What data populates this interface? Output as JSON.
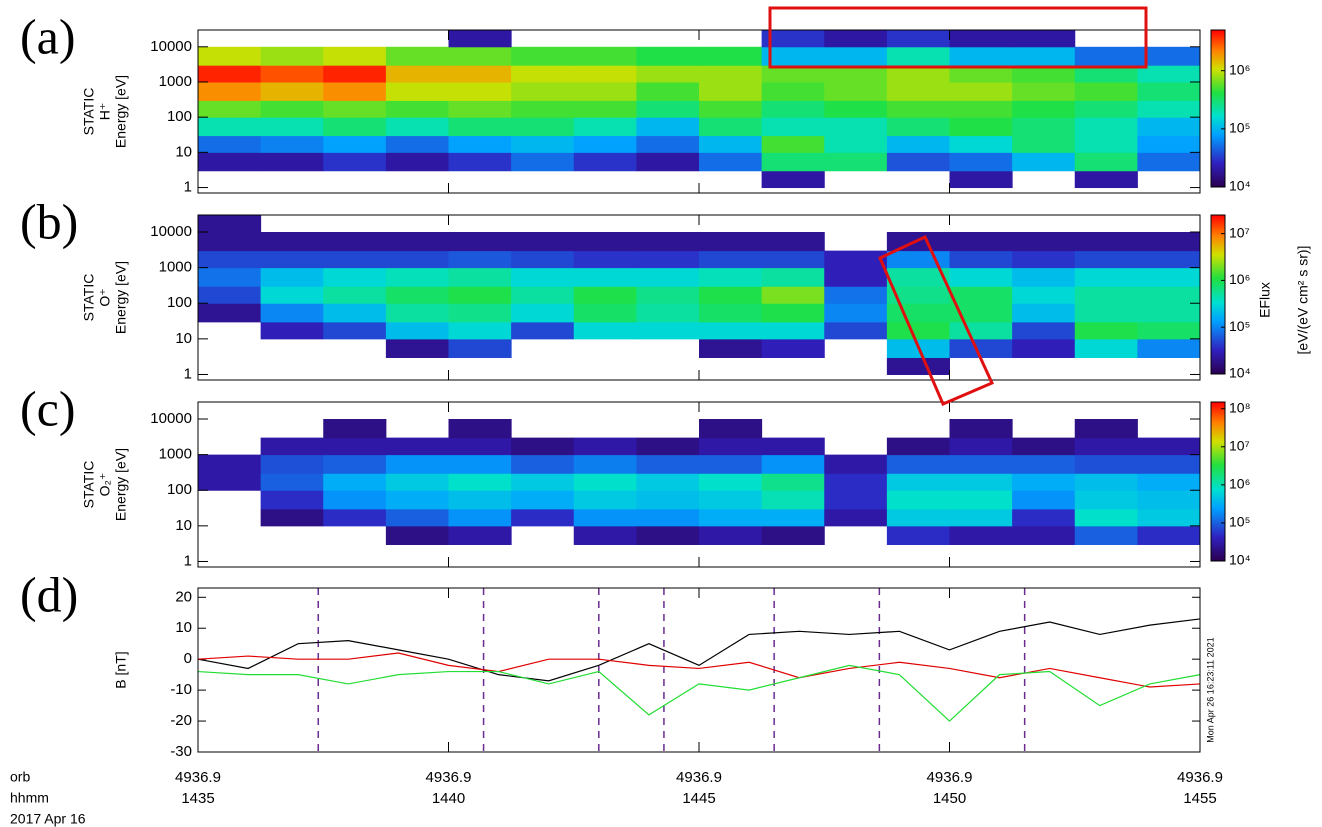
{
  "chart_data": [
    {
      "type": "heatmap",
      "label": "(a)",
      "ylabel": [
        "STATIC",
        "H⁺",
        "Energy [eV]"
      ],
      "log_y": true,
      "xlim": [
        1435,
        1455
      ],
      "ylim": [
        0.7,
        30000
      ],
      "yticks": [
        1,
        10,
        100,
        1000,
        10000
      ],
      "x_edges": [
        1435,
        1436.25,
        1437.5,
        1438.75,
        1440,
        1441.25,
        1442.5,
        1443.75,
        1445,
        1446.25,
        1447.5,
        1448.75,
        1450,
        1451.25,
        1452.5,
        1453.75,
        1455
      ],
      "y_edges": [
        1,
        3,
        10,
        30,
        100,
        300,
        1000,
        3000,
        10000,
        30000
      ],
      "zlim": [
        10000,
        5000000
      ],
      "zticks": [
        {
          "value": 10000,
          "label": "10⁴"
        },
        {
          "value": 100000,
          "label": "10⁵"
        },
        {
          "value": 1000000,
          "label": "10⁶"
        }
      ],
      "z": [
        [
          null,
          null,
          null,
          null,
          null,
          null,
          null,
          null,
          null,
          20000.0,
          null,
          null,
          20000.0,
          null,
          20000.0,
          null
        ],
        [
          20000.0,
          20000.0,
          30000.0,
          20000.0,
          30000.0,
          50000.0,
          30000.0,
          20000.0,
          50000.0,
          300000.0,
          300000.0,
          40000.0,
          50000.0,
          100000.0,
          300000.0,
          50000.0
        ],
        [
          50000.0,
          60000.0,
          80000.0,
          50000.0,
          80000.0,
          100000.0,
          80000.0,
          50000.0,
          100000.0,
          500000.0,
          200000.0,
          100000.0,
          150000.0,
          300000.0,
          200000.0,
          80000.0
        ],
        [
          200000.0,
          200000.0,
          300000.0,
          200000.0,
          300000.0,
          300000.0,
          200000.0,
          100000.0,
          300000.0,
          200000.0,
          200000.0,
          300000.0,
          400000.0,
          300000.0,
          200000.0,
          100000.0
        ],
        [
          600000.0,
          500000.0,
          600000.0,
          500000.0,
          600000.0,
          500000.0,
          500000.0,
          300000.0,
          500000.0,
          300000.0,
          400000.0,
          500000.0,
          500000.0,
          400000.0,
          300000.0,
          200000.0
        ],
        [
          2000000.0,
          1500000.0,
          2000000.0,
          1000000.0,
          1000000.0,
          800000.0,
          800000.0,
          500000.0,
          800000.0,
          500000.0,
          600000.0,
          800000.0,
          800000.0,
          600000.0,
          500000.0,
          300000.0
        ],
        [
          4000000.0,
          3000000.0,
          4000000.0,
          1500000.0,
          1500000.0,
          1000000.0,
          1000000.0,
          800000.0,
          800000.0,
          600000.0,
          600000.0,
          800000.0,
          600000.0,
          500000.0,
          300000.0,
          200000.0
        ],
        [
          1000000.0,
          800000.0,
          1000000.0,
          600000.0,
          600000.0,
          500000.0,
          500000.0,
          400000.0,
          400000.0,
          100000.0,
          100000.0,
          200000.0,
          100000.0,
          100000.0,
          50000.0,
          50000.0
        ],
        [
          null,
          null,
          null,
          null,
          20000.0,
          null,
          null,
          null,
          null,
          30000.0,
          20000.0,
          30000.0,
          20000.0,
          20000.0,
          null,
          null
        ]
      ]
    },
    {
      "type": "heatmap",
      "label": "(b)",
      "ylabel": [
        "STATIC",
        "O⁺",
        "Energy [eV]"
      ],
      "log_y": true,
      "colorbar_label": [
        "EFlux",
        "[eV/(eV cm² s sr)]"
      ],
      "xlim": [
        1435,
        1455
      ],
      "ylim": [
        0.7,
        30000
      ],
      "yticks": [
        1,
        10,
        100,
        1000,
        10000
      ],
      "x_edges": [
        1435,
        1436.25,
        1437.5,
        1438.75,
        1440,
        1441.25,
        1442.5,
        1443.75,
        1445,
        1446.25,
        1447.5,
        1448.75,
        1450,
        1451.25,
        1452.5,
        1453.75,
        1455
      ],
      "y_edges": [
        1,
        3,
        10,
        30,
        100,
        300,
        1000,
        3000,
        10000,
        30000
      ],
      "zlim": [
        10000,
        25000000
      ],
      "zticks": [
        {
          "value": 10000,
          "label": "10⁴"
        },
        {
          "value": 100000,
          "label": "10⁵"
        },
        {
          "value": 1000000,
          "label": "10⁶"
        },
        {
          "value": 10000000,
          "label": "10⁷"
        }
      ],
      "z": [
        [
          null,
          null,
          null,
          null,
          null,
          null,
          null,
          null,
          null,
          null,
          null,
          20000.0,
          null,
          null,
          null,
          null
        ],
        [
          null,
          null,
          null,
          20000.0,
          50000.0,
          null,
          null,
          null,
          20000.0,
          30000.0,
          null,
          200000.0,
          50000.0,
          30000.0,
          300000.0,
          100000.0
        ],
        [
          null,
          30000.0,
          50000.0,
          200000.0,
          300000.0,
          50000.0,
          300000.0,
          300000.0,
          300000.0,
          300000.0,
          50000.0,
          1000000.0,
          500000.0,
          50000.0,
          1000000.0,
          800000.0
        ],
        [
          20000.0,
          100000.0,
          200000.0,
          500000.0,
          600000.0,
          300000.0,
          800000.0,
          500000.0,
          800000.0,
          1000000.0,
          100000.0,
          800000.0,
          800000.0,
          200000.0,
          500000.0,
          500000.0
        ],
        [
          50000.0,
          300000.0,
          500000.0,
          800000.0,
          1000000.0,
          500000.0,
          1000000.0,
          600000.0,
          1000000.0,
          2000000.0,
          80000.0,
          600000.0,
          800000.0,
          300000.0,
          500000.0,
          500000.0
        ],
        [
          80000.0,
          200000.0,
          300000.0,
          400000.0,
          500000.0,
          300000.0,
          300000.0,
          300000.0,
          400000.0,
          500000.0,
          30000.0,
          500000.0,
          300000.0,
          200000.0,
          300000.0,
          300000.0
        ],
        [
          50000.0,
          50000.0,
          50000.0,
          50000.0,
          60000.0,
          50000.0,
          40000.0,
          40000.0,
          50000.0,
          50000.0,
          30000.0,
          100000.0,
          50000.0,
          40000.0,
          50000.0,
          50000.0
        ],
        [
          20000.0,
          20000.0,
          20000.0,
          20000.0,
          20000.0,
          20000.0,
          20000.0,
          20000.0,
          20000.0,
          20000.0,
          null,
          20000.0,
          20000.0,
          20000.0,
          20000.0,
          20000.0
        ],
        [
          20000.0,
          null,
          null,
          null,
          null,
          null,
          null,
          null,
          null,
          null,
          null,
          null,
          null,
          null,
          null,
          null
        ]
      ]
    },
    {
      "type": "heatmap",
      "label": "(c)",
      "ylabel": [
        "STATIC",
        "O₂⁺",
        "Energy [eV]"
      ],
      "log_y": true,
      "xlim": [
        1435,
        1455
      ],
      "ylim": [
        0.7,
        30000
      ],
      "yticks": [
        1,
        10,
        100,
        1000,
        10000
      ],
      "x_edges": [
        1435,
        1436.25,
        1437.5,
        1438.75,
        1440,
        1441.25,
        1442.5,
        1443.75,
        1445,
        1446.25,
        1447.5,
        1448.75,
        1450,
        1451.25,
        1452.5,
        1453.75,
        1455
      ],
      "y_edges": [
        1,
        3,
        10,
        30,
        100,
        300,
        1000,
        3000,
        10000,
        30000
      ],
      "zlim": [
        10000,
        150000000
      ],
      "zticks": [
        {
          "value": 10000,
          "label": "10⁴"
        },
        {
          "value": 100000,
          "label": "10⁵"
        },
        {
          "value": 1000000,
          "label": "10⁶"
        },
        {
          "value": 10000000,
          "label": "10⁷"
        },
        {
          "value": 100000000,
          "label": "10⁸"
        }
      ],
      "z": [
        [
          null,
          null,
          null,
          null,
          null,
          null,
          null,
          null,
          null,
          null,
          null,
          null,
          null,
          null,
          null,
          null
        ],
        [
          null,
          null,
          null,
          20000.0,
          30000.0,
          null,
          30000.0,
          20000.0,
          30000.0,
          20000.0,
          null,
          50000.0,
          30000.0,
          30000.0,
          100000.0,
          50000.0
        ],
        [
          null,
          20000.0,
          50000.0,
          100000.0,
          200000.0,
          50000.0,
          200000.0,
          200000.0,
          300000.0,
          300000.0,
          30000.0,
          500000.0,
          500000.0,
          50000.0,
          800000.0,
          500000.0
        ],
        [
          null,
          50000.0,
          200000.0,
          300000.0,
          400000.0,
          300000.0,
          500000.0,
          400000.0,
          500000.0,
          1000000.0,
          50000.0,
          800000.0,
          800000.0,
          200000.0,
          500000.0,
          400000.0
        ],
        [
          30000.0,
          100000.0,
          300000.0,
          500000.0,
          800000.0,
          500000.0,
          800000.0,
          500000.0,
          800000.0,
          1500000.0,
          50000.0,
          500000.0,
          500000.0,
          300000.0,
          400000.0,
          300000.0
        ],
        [
          30000.0,
          80000.0,
          100000.0,
          200000.0,
          200000.0,
          100000.0,
          150000.0,
          100000.0,
          100000.0,
          200000.0,
          30000.0,
          100000.0,
          100000.0,
          100000.0,
          80000.0,
          80000.0
        ],
        [
          null,
          30000.0,
          30000.0,
          30000.0,
          30000.0,
          20000.0,
          30000.0,
          20000.0,
          30000.0,
          30000.0,
          null,
          20000.0,
          30000.0,
          20000.0,
          30000.0,
          30000.0
        ],
        [
          null,
          null,
          20000.0,
          null,
          20000.0,
          null,
          null,
          null,
          20000.0,
          null,
          null,
          null,
          20000.0,
          null,
          20000.0,
          null
        ],
        [
          null,
          null,
          null,
          null,
          null,
          null,
          null,
          null,
          null,
          null,
          null,
          null,
          null,
          null,
          null,
          null
        ]
      ]
    },
    {
      "type": "line",
      "label": "(d)",
      "ylabel": [
        "B [nT]"
      ],
      "xlim": [
        1435,
        1455
      ],
      "xticks": [
        1435,
        1440,
        1445,
        1450,
        1455
      ],
      "orb_labels": [
        "4936.9",
        "4936.9",
        "4936.9",
        "4936.9",
        "4936.9"
      ],
      "x_row_labels": [
        "orb",
        "hhmm",
        "2017 Apr 16"
      ],
      "ylim": [
        -30,
        23
      ],
      "yticks": [
        -30,
        -20,
        -10,
        0,
        10,
        20
      ],
      "markers": [
        1437.4,
        1440.7,
        1443.0,
        1444.3,
        1446.5,
        1448.6,
        1451.5
      ],
      "marker_color": "#6a2c91",
      "stamp": "Mon Apr 26 16:23:11 2021",
      "x": [
        1435,
        1436,
        1437,
        1438,
        1439,
        1440,
        1441,
        1442,
        1443,
        1444,
        1445,
        1446,
        1447,
        1448,
        1449,
        1450,
        1451,
        1452,
        1453,
        1454,
        1455
      ],
      "series": [
        {
          "color": "#000000",
          "values": [
            0,
            -3,
            5,
            6,
            3,
            0,
            -5,
            -7,
            -2,
            5,
            -2,
            8,
            9,
            8,
            9,
            3,
            9,
            12,
            8,
            11,
            13
          ]
        },
        {
          "color": "#e00000",
          "values": [
            0,
            1,
            0,
            0,
            2,
            -2,
            -4,
            0,
            0,
            -2,
            -3,
            -1,
            -6,
            -3,
            -1,
            -3,
            -6,
            -3,
            -6,
            -9,
            -8
          ]
        },
        {
          "color": "#22dd33",
          "values": [
            -4,
            -5,
            -5,
            -8,
            -5,
            -4,
            -4,
            -8,
            -4,
            -18,
            -8,
            -10,
            -6,
            -2,
            -5,
            -20,
            -5,
            -4,
            -15,
            -8,
            -5
          ]
        }
      ]
    }
  ]
}
